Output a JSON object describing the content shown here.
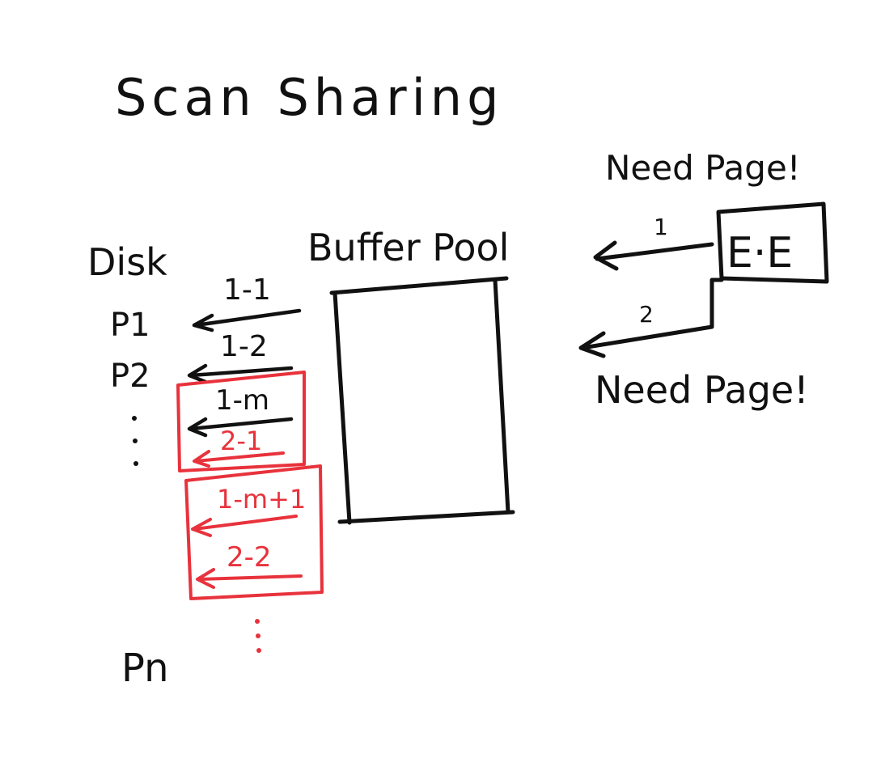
{
  "title": "Scan Sharing",
  "disk": {
    "label": "Disk",
    "pages": [
      "P1",
      "P2",
      "Pn"
    ]
  },
  "buffer_pool": {
    "label": "Buffer Pool"
  },
  "executor": {
    "label": "E·E",
    "request_top": "Need Page!",
    "request_bottom": "Need Page!",
    "arrow_labels": [
      "1",
      "2"
    ]
  },
  "requests": {
    "black": [
      "1-1",
      "1-2",
      "1-m"
    ],
    "red": [
      "2-1",
      "1-m+1",
      "2-2"
    ]
  },
  "colors": {
    "ink": "#111111",
    "highlight": "#e8323c"
  }
}
